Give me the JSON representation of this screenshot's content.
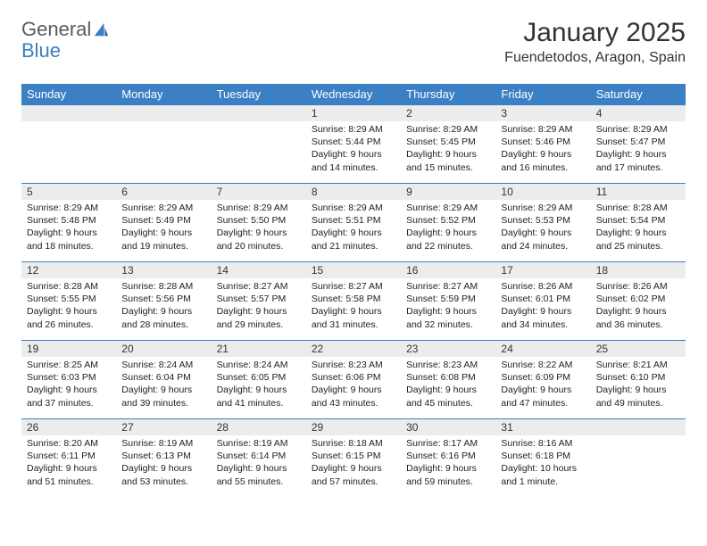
{
  "logo": {
    "text1": "General",
    "text2": "Blue"
  },
  "title": "January 2025",
  "location": "Fuendetodos, Aragon, Spain",
  "colors": {
    "header_bg": "#3b7fc4",
    "header_text": "#ffffff",
    "daynum_bg": "#ececec",
    "border": "#3b7fc4",
    "logo_gray": "#5a5a5a",
    "logo_blue": "#3b7fc4",
    "body_text": "#222222",
    "page_bg": "#ffffff"
  },
  "weekdays": [
    "Sunday",
    "Monday",
    "Tuesday",
    "Wednesday",
    "Thursday",
    "Friday",
    "Saturday"
  ],
  "weeks": [
    [
      null,
      null,
      null,
      {
        "n": "1",
        "sr": "8:29 AM",
        "ss": "5:44 PM",
        "dl": "9 hours and 14 minutes."
      },
      {
        "n": "2",
        "sr": "8:29 AM",
        "ss": "5:45 PM",
        "dl": "9 hours and 15 minutes."
      },
      {
        "n": "3",
        "sr": "8:29 AM",
        "ss": "5:46 PM",
        "dl": "9 hours and 16 minutes."
      },
      {
        "n": "4",
        "sr": "8:29 AM",
        "ss": "5:47 PM",
        "dl": "9 hours and 17 minutes."
      }
    ],
    [
      {
        "n": "5",
        "sr": "8:29 AM",
        "ss": "5:48 PM",
        "dl": "9 hours and 18 minutes."
      },
      {
        "n": "6",
        "sr": "8:29 AM",
        "ss": "5:49 PM",
        "dl": "9 hours and 19 minutes."
      },
      {
        "n": "7",
        "sr": "8:29 AM",
        "ss": "5:50 PM",
        "dl": "9 hours and 20 minutes."
      },
      {
        "n": "8",
        "sr": "8:29 AM",
        "ss": "5:51 PM",
        "dl": "9 hours and 21 minutes."
      },
      {
        "n": "9",
        "sr": "8:29 AM",
        "ss": "5:52 PM",
        "dl": "9 hours and 22 minutes."
      },
      {
        "n": "10",
        "sr": "8:29 AM",
        "ss": "5:53 PM",
        "dl": "9 hours and 24 minutes."
      },
      {
        "n": "11",
        "sr": "8:28 AM",
        "ss": "5:54 PM",
        "dl": "9 hours and 25 minutes."
      }
    ],
    [
      {
        "n": "12",
        "sr": "8:28 AM",
        "ss": "5:55 PM",
        "dl": "9 hours and 26 minutes."
      },
      {
        "n": "13",
        "sr": "8:28 AM",
        "ss": "5:56 PM",
        "dl": "9 hours and 28 minutes."
      },
      {
        "n": "14",
        "sr": "8:27 AM",
        "ss": "5:57 PM",
        "dl": "9 hours and 29 minutes."
      },
      {
        "n": "15",
        "sr": "8:27 AM",
        "ss": "5:58 PM",
        "dl": "9 hours and 31 minutes."
      },
      {
        "n": "16",
        "sr": "8:27 AM",
        "ss": "5:59 PM",
        "dl": "9 hours and 32 minutes."
      },
      {
        "n": "17",
        "sr": "8:26 AM",
        "ss": "6:01 PM",
        "dl": "9 hours and 34 minutes."
      },
      {
        "n": "18",
        "sr": "8:26 AM",
        "ss": "6:02 PM",
        "dl": "9 hours and 36 minutes."
      }
    ],
    [
      {
        "n": "19",
        "sr": "8:25 AM",
        "ss": "6:03 PM",
        "dl": "9 hours and 37 minutes."
      },
      {
        "n": "20",
        "sr": "8:24 AM",
        "ss": "6:04 PM",
        "dl": "9 hours and 39 minutes."
      },
      {
        "n": "21",
        "sr": "8:24 AM",
        "ss": "6:05 PM",
        "dl": "9 hours and 41 minutes."
      },
      {
        "n": "22",
        "sr": "8:23 AM",
        "ss": "6:06 PM",
        "dl": "9 hours and 43 minutes."
      },
      {
        "n": "23",
        "sr": "8:23 AM",
        "ss": "6:08 PM",
        "dl": "9 hours and 45 minutes."
      },
      {
        "n": "24",
        "sr": "8:22 AM",
        "ss": "6:09 PM",
        "dl": "9 hours and 47 minutes."
      },
      {
        "n": "25",
        "sr": "8:21 AM",
        "ss": "6:10 PM",
        "dl": "9 hours and 49 minutes."
      }
    ],
    [
      {
        "n": "26",
        "sr": "8:20 AM",
        "ss": "6:11 PM",
        "dl": "9 hours and 51 minutes."
      },
      {
        "n": "27",
        "sr": "8:19 AM",
        "ss": "6:13 PM",
        "dl": "9 hours and 53 minutes."
      },
      {
        "n": "28",
        "sr": "8:19 AM",
        "ss": "6:14 PM",
        "dl": "9 hours and 55 minutes."
      },
      {
        "n": "29",
        "sr": "8:18 AM",
        "ss": "6:15 PM",
        "dl": "9 hours and 57 minutes."
      },
      {
        "n": "30",
        "sr": "8:17 AM",
        "ss": "6:16 PM",
        "dl": "9 hours and 59 minutes."
      },
      {
        "n": "31",
        "sr": "8:16 AM",
        "ss": "6:18 PM",
        "dl": "10 hours and 1 minute."
      },
      null
    ]
  ],
  "labels": {
    "sunrise": "Sunrise:",
    "sunset": "Sunset:",
    "daylight": "Daylight:"
  }
}
